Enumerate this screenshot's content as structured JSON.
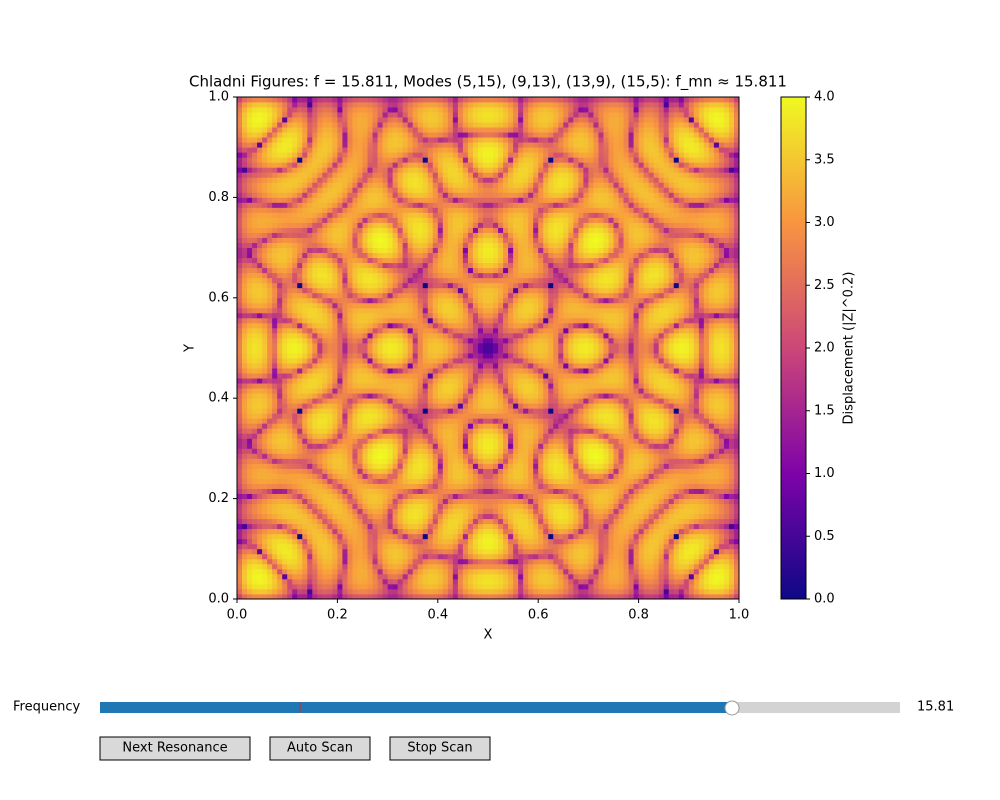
{
  "chart_data": {
    "type": "heatmap",
    "title": "Chladni Figures: f = 15.811, Modes (5,15), (9,13), (13,9), (15,5): f_mn ≈ 15.811",
    "x_label": "X",
    "y_label": "Y",
    "modes": [
      [
        5,
        15
      ],
      [
        9,
        13
      ],
      [
        13,
        9
      ],
      [
        15,
        5
      ]
    ],
    "xlim": [
      0,
      1
    ],
    "ylim": [
      0,
      1
    ],
    "xticks": [
      {
        "value": 0,
        "label": "0.0"
      },
      {
        "value": 0.2,
        "label": "0.2"
      },
      {
        "value": 0.4,
        "label": "0.4"
      },
      {
        "value": 0.6,
        "label": "0.6"
      },
      {
        "value": 0.8,
        "label": "0.8"
      },
      {
        "value": 1,
        "label": "1.0"
      }
    ],
    "yticks": [
      {
        "value": 0,
        "label": "0.0"
      },
      {
        "value": 0.2,
        "label": "0.2"
      },
      {
        "value": 0.4,
        "label": "0.4"
      },
      {
        "value": 0.6,
        "label": "0.6"
      },
      {
        "value": 0.8,
        "label": "0.8"
      },
      {
        "value": 1,
        "label": "1.0"
      }
    ],
    "colorbar": {
      "label": "Displacement (|Z|^0.2)",
      "colormap": [
        "#0d0887",
        "#7e03a8",
        "#cc4778",
        "#f89540",
        "#f0f921"
      ],
      "lim": [
        0,
        4
      ],
      "ticks": [
        {
          "value": 0,
          "label": "0.0"
        },
        {
          "value": 0.5,
          "label": "0.5"
        },
        {
          "value": 1,
          "label": "1.0"
        },
        {
          "value": 1.5,
          "label": "1.5"
        },
        {
          "value": 2,
          "label": "2.0"
        },
        {
          "value": 2.5,
          "label": "2.5"
        },
        {
          "value": 3,
          "label": "3.0"
        },
        {
          "value": 3.5,
          "label": "3.5"
        },
        {
          "value": 4,
          "label": "4.0"
        }
      ]
    }
  },
  "controls": {
    "slider": {
      "label": "Frequency",
      "value": 15.81
    },
    "buttons": [
      "Next Resonance",
      "Auto Scan",
      "Stop Scan"
    ]
  }
}
